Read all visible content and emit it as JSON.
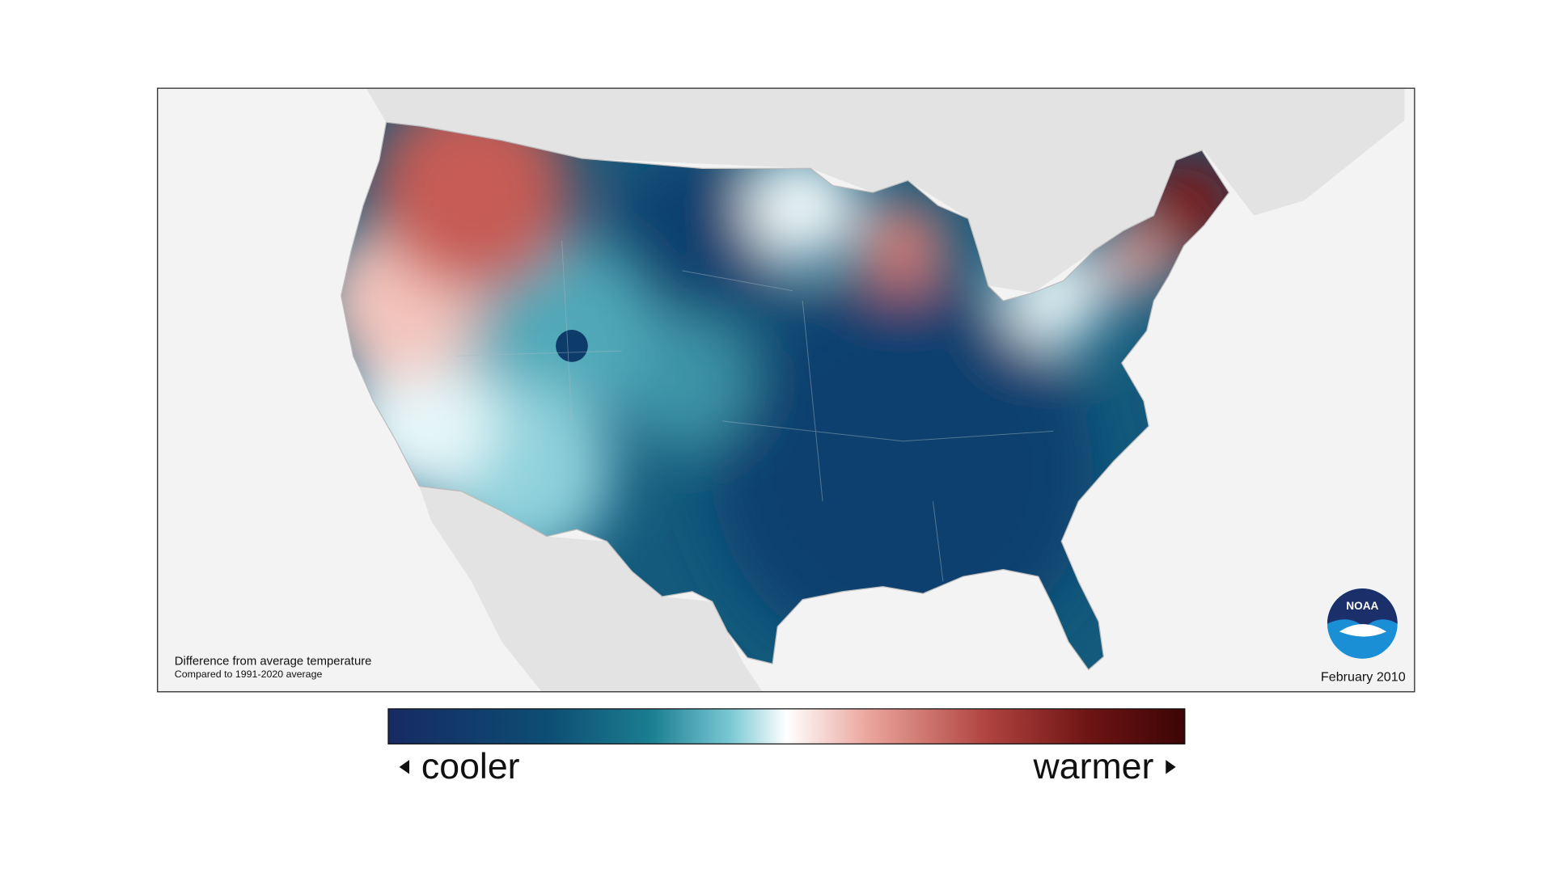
{
  "map": {
    "title_line": "Difference from average temperature",
    "baseline_note": "Compared to 1991-2020 average",
    "date": "February 2010",
    "logo_text": "NOAA"
  },
  "legend": {
    "low_label": "cooler",
    "high_label": "warmer"
  }
}
